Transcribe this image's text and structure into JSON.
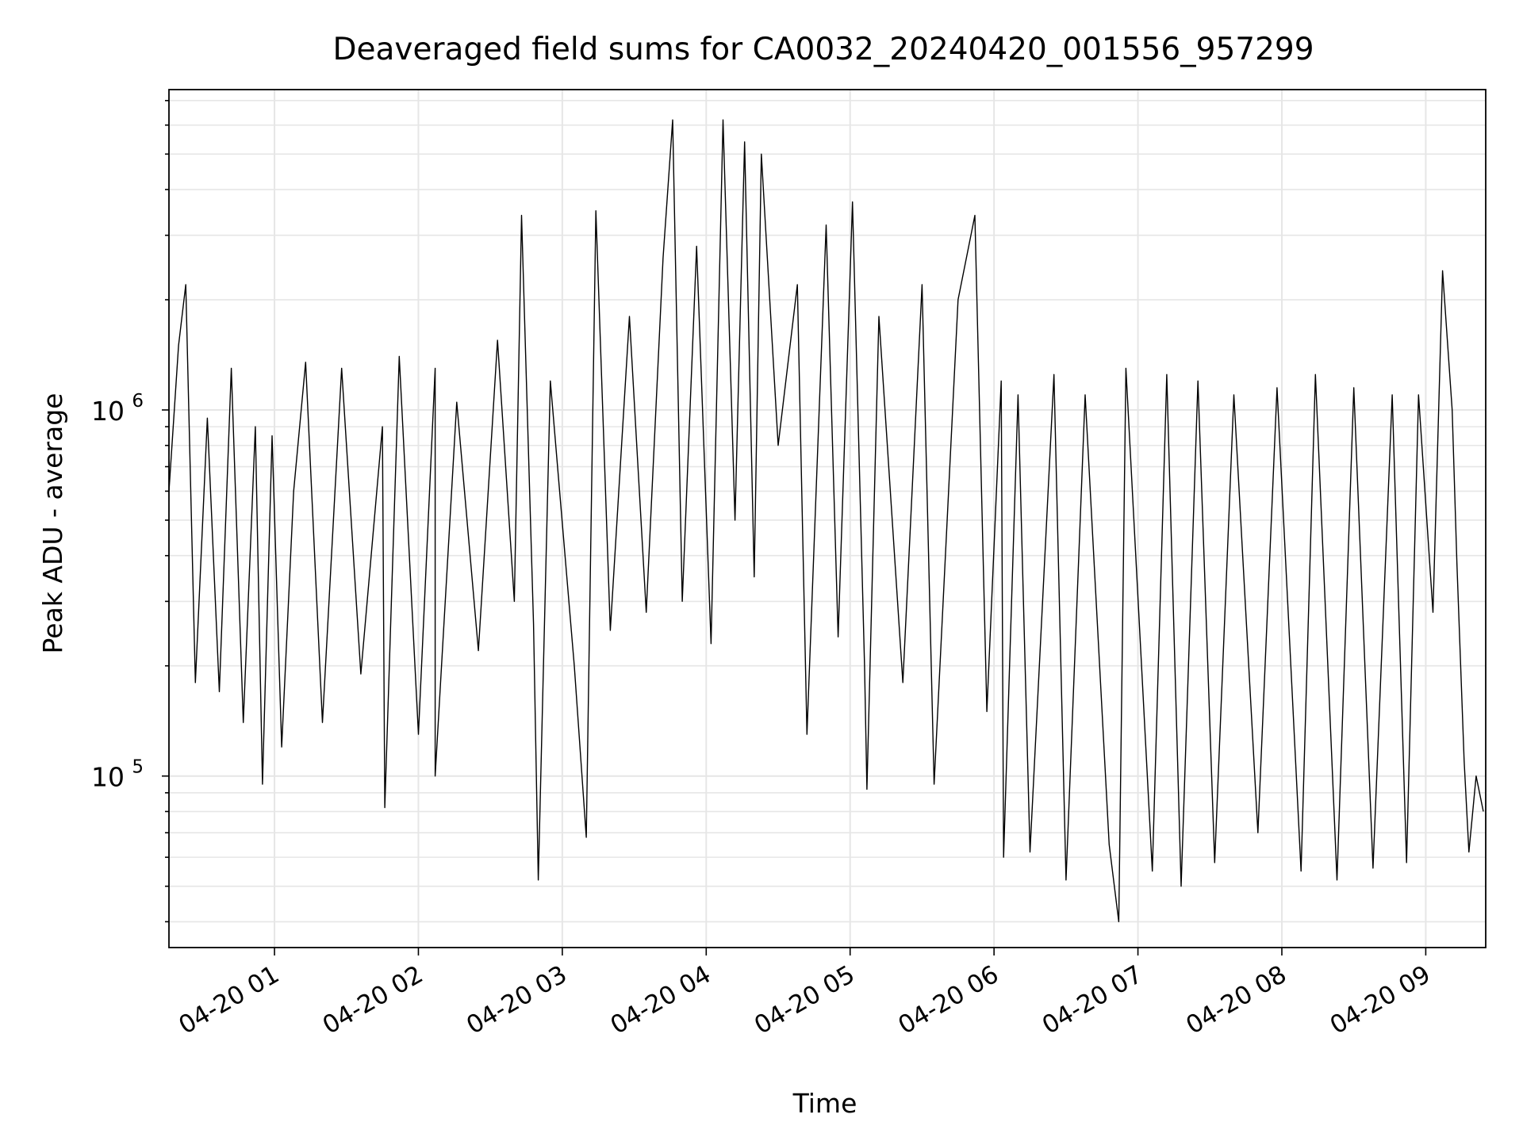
{
  "chart_data": {
    "type": "line",
    "title": "Deaveraged field sums for CA0032_20240420_001556_957299",
    "xlabel": "Time",
    "ylabel": "Peak ADU - average",
    "x_range": [
      "2024-04-20T00:16:00",
      "2024-04-20T09:25:00"
    ],
    "ylim": [
      34000,
      7500000
    ],
    "yscale": "log",
    "grid": true,
    "line_color": "#000000",
    "x_ticks": [
      {
        "t": "2024-04-20T01:00:00",
        "label": "04-20 01"
      },
      {
        "t": "2024-04-20T02:00:00",
        "label": "04-20 02"
      },
      {
        "t": "2024-04-20T03:00:00",
        "label": "04-20 03"
      },
      {
        "t": "2024-04-20T04:00:00",
        "label": "04-20 04"
      },
      {
        "t": "2024-04-20T05:00:00",
        "label": "04-20 05"
      },
      {
        "t": "2024-04-20T06:00:00",
        "label": "04-20 06"
      },
      {
        "t": "2024-04-20T07:00:00",
        "label": "04-20 07"
      },
      {
        "t": "2024-04-20T08:00:00",
        "label": "04-20 08"
      },
      {
        "t": "2024-04-20T09:00:00",
        "label": "04-20 09"
      }
    ],
    "y_ticks": [
      {
        "value": 100000,
        "base": "10",
        "exp": "5"
      },
      {
        "value": 1000000,
        "base": "10",
        "exp": "6"
      }
    ],
    "series": [
      {
        "points": [
          [
            "2024-04-20T00:16",
            600000
          ],
          [
            "2024-04-20T00:20",
            1500000
          ],
          [
            "2024-04-20T00:23",
            2200000
          ],
          [
            "2024-04-20T00:27",
            180000
          ],
          [
            "2024-04-20T00:32",
            950000
          ],
          [
            "2024-04-20T00:37",
            170000
          ],
          [
            "2024-04-20T00:42",
            1300000
          ],
          [
            "2024-04-20T00:47",
            140000
          ],
          [
            "2024-04-20T00:52",
            900000
          ],
          [
            "2024-04-20T00:55",
            95000
          ],
          [
            "2024-04-20T00:59",
            850000
          ],
          [
            "2024-04-20T01:03",
            120000
          ],
          [
            "2024-04-20T01:08",
            600000
          ],
          [
            "2024-04-20T01:13",
            1350000
          ],
          [
            "2024-04-20T01:20",
            140000
          ],
          [
            "2024-04-20T01:28",
            1300000
          ],
          [
            "2024-04-20T01:36",
            190000
          ],
          [
            "2024-04-20T01:45",
            900000
          ],
          [
            "2024-04-20T01:46",
            82000
          ],
          [
            "2024-04-20T01:52",
            1400000
          ],
          [
            "2024-04-20T02:00",
            130000
          ],
          [
            "2024-04-20T02:07",
            1300000
          ],
          [
            "2024-04-20T02:07",
            100000
          ],
          [
            "2024-04-20T02:16",
            1050000
          ],
          [
            "2024-04-20T02:25",
            220000
          ],
          [
            "2024-04-20T02:33",
            1550000
          ],
          [
            "2024-04-20T02:40",
            300000
          ],
          [
            "2024-04-20T02:43",
            3400000
          ],
          [
            "2024-04-20T02:48",
            260000
          ],
          [
            "2024-04-20T02:50",
            52000
          ],
          [
            "2024-04-20T02:55",
            1200000
          ],
          [
            "2024-04-20T03:05",
            200000
          ],
          [
            "2024-04-20T03:10",
            68000
          ],
          [
            "2024-04-20T03:14",
            3500000
          ],
          [
            "2024-04-20T03:20",
            250000
          ],
          [
            "2024-04-20T03:28",
            1800000
          ],
          [
            "2024-04-20T03:35",
            280000
          ],
          [
            "2024-04-20T03:42",
            2600000
          ],
          [
            "2024-04-20T03:46",
            6200000
          ],
          [
            "2024-04-20T03:50",
            300000
          ],
          [
            "2024-04-20T03:56",
            2800000
          ],
          [
            "2024-04-20T04:02",
            230000
          ],
          [
            "2024-04-20T04:07",
            6200000
          ],
          [
            "2024-04-20T04:12",
            500000
          ],
          [
            "2024-04-20T04:16",
            5400000
          ],
          [
            "2024-04-20T04:20",
            350000
          ],
          [
            "2024-04-20T04:23",
            5000000
          ],
          [
            "2024-04-20T04:30",
            800000
          ],
          [
            "2024-04-20T04:38",
            2200000
          ],
          [
            "2024-04-20T04:42",
            130000
          ],
          [
            "2024-04-20T04:50",
            3200000
          ],
          [
            "2024-04-20T04:55",
            240000
          ],
          [
            "2024-04-20T05:01",
            3700000
          ],
          [
            "2024-04-20T05:06",
            200000
          ],
          [
            "2024-04-20T05:07",
            92000
          ],
          [
            "2024-04-20T05:12",
            1800000
          ],
          [
            "2024-04-20T05:22",
            180000
          ],
          [
            "2024-04-20T05:30",
            2200000
          ],
          [
            "2024-04-20T05:35",
            95000
          ],
          [
            "2024-04-20T05:45",
            2000000
          ],
          [
            "2024-04-20T05:52",
            3400000
          ],
          [
            "2024-04-20T05:57",
            150000
          ],
          [
            "2024-04-20T06:03",
            1200000
          ],
          [
            "2024-04-20T06:04",
            60000
          ],
          [
            "2024-04-20T06:10",
            1100000
          ],
          [
            "2024-04-20T06:15",
            62000
          ],
          [
            "2024-04-20T06:25",
            1250000
          ],
          [
            "2024-04-20T06:30",
            52000
          ],
          [
            "2024-04-20T06:38",
            1100000
          ],
          [
            "2024-04-20T06:48",
            65000
          ],
          [
            "2024-04-20T06:52",
            40000
          ],
          [
            "2024-04-20T06:55",
            1300000
          ],
          [
            "2024-04-20T07:06",
            55000
          ],
          [
            "2024-04-20T07:12",
            1250000
          ],
          [
            "2024-04-20T07:18",
            50000
          ],
          [
            "2024-04-20T07:25",
            1200000
          ],
          [
            "2024-04-20T07:32",
            58000
          ],
          [
            "2024-04-20T07:40",
            1100000
          ],
          [
            "2024-04-20T07:50",
            70000
          ],
          [
            "2024-04-20T07:58",
            1150000
          ],
          [
            "2024-04-20T08:08",
            55000
          ],
          [
            "2024-04-20T08:14",
            1250000
          ],
          [
            "2024-04-20T08:23",
            52000
          ],
          [
            "2024-04-20T08:30",
            1150000
          ],
          [
            "2024-04-20T08:38",
            56000
          ],
          [
            "2024-04-20T08:46",
            1100000
          ],
          [
            "2024-04-20T08:52",
            58000
          ],
          [
            "2024-04-20T08:57",
            1100000
          ],
          [
            "2024-04-20T09:03",
            280000
          ],
          [
            "2024-04-20T09:07",
            2400000
          ],
          [
            "2024-04-20T09:11",
            1000000
          ],
          [
            "2024-04-20T09:13",
            380000
          ],
          [
            "2024-04-20T09:16",
            110000
          ],
          [
            "2024-04-20T09:18",
            62000
          ],
          [
            "2024-04-20T09:21",
            100000
          ],
          [
            "2024-04-20T09:24",
            80000
          ]
        ]
      }
    ]
  }
}
